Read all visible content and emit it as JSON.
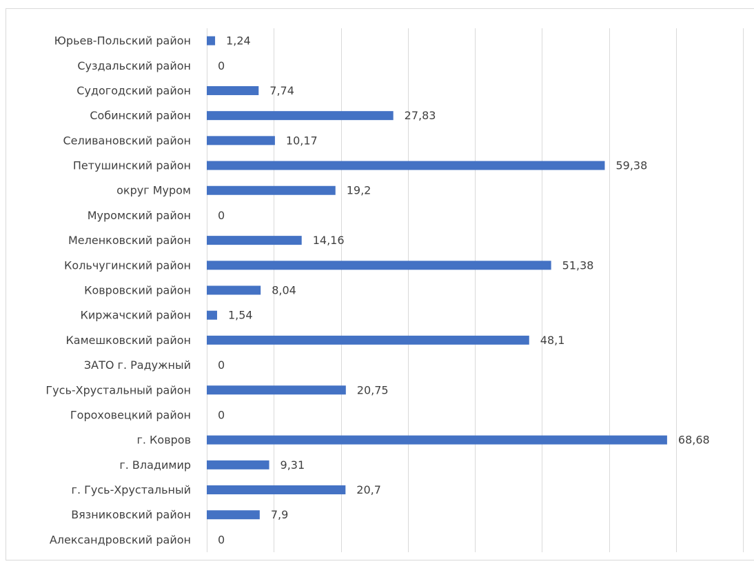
{
  "chart_data": {
    "type": "bar",
    "orientation": "horizontal",
    "categories": [
      "Юрьев-Польский район",
      "Суздальский район",
      "Судогодский район",
      "Собинский район",
      "Селивановский район",
      "Петушинский район",
      "округ Муром",
      "Муромский район",
      "Меленковский район",
      "Кольчугинский район",
      "Ковровский район",
      "Киржачский район",
      "Камешковский район",
      "ЗАТО г. Радужный",
      "Гусь-Хрустальный район",
      "Гороховецкий район",
      "г. Ковров",
      "г. Владимир",
      "г. Гусь-Хрустальный",
      "Вязниковский район",
      "Александровский район"
    ],
    "values": [
      1.24,
      0,
      7.74,
      27.83,
      10.17,
      59.38,
      19.2,
      0,
      14.16,
      51.38,
      8.04,
      1.54,
      48.1,
      0,
      20.75,
      0,
      68.68,
      9.31,
      20.7,
      7.9,
      0
    ],
    "value_labels": [
      "1,24",
      "0",
      "7,74",
      "27,83",
      "10,17",
      "59,38",
      "19,2",
      "0",
      "14,16",
      "51,38",
      "8,04",
      "1,54",
      "48,1",
      "0",
      "20,75",
      "0",
      "68,68",
      "9,31",
      "20,7",
      "7,9",
      "0"
    ],
    "color": "#4472c4",
    "xlim": [
      0,
      80
    ],
    "xticks": [
      0,
      10,
      20,
      30,
      40,
      50,
      60,
      70,
      80
    ],
    "grid": true
  }
}
